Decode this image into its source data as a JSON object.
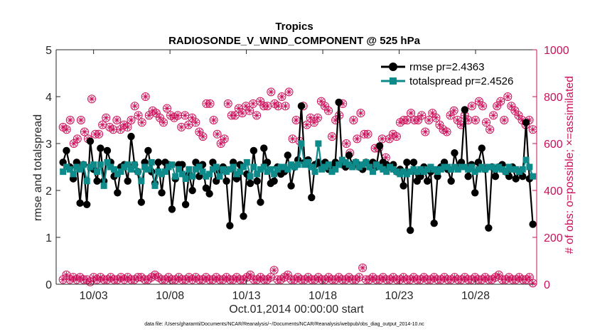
{
  "chart_data": {
    "type": "line",
    "title": "Tropics",
    "subtitle": "RADIOSONDE_V_WIND_COMPONENT @ 525 hPa",
    "xlabel": "Oct.01,2014 00:00:00 start",
    "ylabel": "rmse and totalspread",
    "ylabel_right": "# of obs: o=possible; ×=assimilated",
    "xlim": [
      0.55,
      32.0
    ],
    "ylim": [
      0,
      5
    ],
    "ylim_right": [
      0,
      1000
    ],
    "x_ticks": [
      3,
      8,
      13,
      18,
      23,
      28
    ],
    "x_tick_labels": [
      "10/03",
      "10/08",
      "10/13",
      "10/18",
      "10/23",
      "10/28"
    ],
    "y_ticks": [
      "0",
      "1",
      "2",
      "3",
      "4",
      "5"
    ],
    "y_ticks_right": [
      "0",
      "200",
      "400",
      "600",
      "800",
      "1000"
    ],
    "legend_position": "top-right",
    "colors": {
      "rmse": "#000000",
      "spread": "#0d8a89",
      "obs": "#cc0f5a",
      "axis": "#262626"
    },
    "series": [
      {
        "name": "rmse pr=2.4363",
        "axis": "left",
        "marker": "circle",
        "values": [
          2.6,
          2.85,
          2.5,
          2.25,
          2.6,
          1.73,
          2.55,
          1.7,
          3.05,
          2.45,
          2.2,
          2.9,
          2.2,
          2.85,
          2.6,
          2.3,
          1.95,
          2.5,
          2.55,
          2.2,
          3.15,
          2.55,
          2.4,
          1.75,
          2.6,
          2.85,
          2.4,
          2.15,
          2.6,
          1.95,
          2.6,
          2.55,
          1.6,
          2.25,
          2.55,
          2.55,
          1.7,
          2.35,
          2.0,
          2.6,
          2.3,
          2.55,
          2.05,
          1.93,
          2.6,
          2.2,
          2.4,
          2.5,
          2.2,
          1.25,
          2.6,
          2.25,
          2.55,
          1.45,
          2.35,
          2.15,
          2.85,
          2.2,
          1.75,
          2.9,
          2.6,
          2.15,
          2.2,
          2.5,
          2.35,
          2.4,
          2.75,
          2.1,
          2.5,
          2.65,
          3.8,
          2.6,
          2.65,
          1.85,
          2.55,
          2.6,
          2.5,
          2.6,
          2.45,
          2.5,
          2.6,
          3.88,
          2.55,
          2.5,
          2.75,
          2.55,
          2.6,
          2.5,
          2.45,
          2.6,
          2.55,
          2.6,
          2.5,
          2.95,
          2.6,
          2.55,
          2.5,
          2.55,
          2.4,
          2.45,
          2.1,
          2.6,
          1.15,
          2.6,
          2.2,
          2.3,
          2.5,
          2.2,
          2.4,
          1.3,
          2.3,
          2.5,
          2.6,
          2.45,
          2.2,
          2.8,
          2.5,
          2.6,
          3.72,
          2.3,
          2.55,
          1.95,
          2.6,
          2.9,
          2.45,
          1.2,
          2.5,
          2.3,
          2.5,
          2.55,
          2.4,
          2.3,
          2.5,
          2.25,
          2.4,
          2.3,
          3.45,
          2.25,
          1.28
        ]
      },
      {
        "name": "totalspread pr=2.4526",
        "axis": "left",
        "marker": "square",
        "values": [
          2.4,
          2.5,
          2.45,
          2.35,
          2.5,
          2.45,
          2.55,
          2.2,
          2.5,
          2.55,
          2.4,
          2.55,
          2.1,
          2.6,
          2.5,
          2.45,
          2.35,
          2.4,
          2.5,
          2.55,
          2.45,
          2.55,
          2.4,
          2.2,
          2.5,
          2.45,
          2.6,
          2.1,
          2.4,
          2.35,
          2.4,
          2.5,
          2.55,
          2.3,
          2.45,
          2.35,
          2.25,
          2.45,
          2.3,
          2.45,
          2.5,
          2.4,
          2.3,
          2.35,
          2.45,
          2.5,
          2.3,
          2.45,
          2.4,
          2.45,
          2.5,
          2.35,
          2.4,
          2.5,
          2.6,
          2.3,
          2.5,
          2.35,
          2.45,
          2.5,
          2.4,
          2.45,
          2.35,
          2.45,
          2.5,
          2.5,
          2.45,
          2.55,
          2.5,
          2.55,
          3.0,
          2.55,
          2.6,
          2.5,
          2.4,
          3.0,
          2.45,
          2.5,
          2.55,
          2.4,
          2.45,
          2.55,
          2.65,
          2.6,
          2.55,
          2.5,
          2.6,
          2.5,
          2.55,
          2.6,
          2.5,
          2.4,
          2.55,
          2.5,
          2.45,
          2.4,
          2.5,
          2.45,
          2.4,
          2.35,
          2.4,
          2.35,
          2.4,
          2.45,
          2.4,
          2.45,
          2.4,
          2.45,
          2.5,
          2.45,
          2.4,
          2.45,
          2.5,
          2.5,
          2.45,
          2.5,
          2.45,
          2.5,
          2.5,
          2.45,
          2.5,
          2.4,
          2.45,
          2.5,
          2.45,
          2.5,
          2.5,
          2.45,
          2.5,
          2.45,
          2.4,
          2.5,
          2.45,
          2.45,
          2.4,
          2.45,
          2.65,
          2.5,
          2.3
        ]
      },
      {
        "name": "obs possible (high)",
        "axis": "right",
        "marker": "circle-open",
        "values": [
          670,
          660,
          700,
          600,
          620,
          700,
          650,
          620,
          790,
          640,
          640,
          680,
          710,
          670,
          660,
          700,
          660,
          680,
          670,
          700,
          760,
          720,
          690,
          800,
          720,
          740,
          730,
          710,
          690,
          750,
          720,
          710,
          720,
          670,
          720,
          680,
          710,
          690,
          650,
          630,
          770,
          770,
          700,
          640,
          600,
          620,
          770,
          720,
          720,
          750,
          730,
          760,
          740,
          770,
          720,
          780,
          760,
          760,
          820,
          770,
          760,
          800,
          760,
          820,
          620,
          700,
          610,
          760,
          680,
          710,
          690,
          710,
          780,
          760,
          740,
          630,
          700,
          720,
          770,
          600,
          560,
          700,
          620,
          730,
          640,
          640,
          500,
          580,
          580,
          620,
          540,
          620,
          640,
          630,
          690,
          700,
          700,
          730,
          700,
          700,
          720,
          650,
          700,
          730,
          710,
          680,
          660,
          650,
          720,
          740,
          700,
          680,
          720,
          700,
          760,
          700,
          780,
          760,
          690,
          660,
          720,
          760,
          780,
          700,
          800,
          760,
          740,
          720,
          700,
          680,
          700,
          660
        ]
      },
      {
        "name": "obs possible (low)",
        "axis": "right",
        "marker": "circle-open",
        "values": [
          20,
          40,
          20,
          30,
          20,
          30,
          20,
          20,
          10,
          30,
          20,
          30,
          20,
          20,
          30,
          20,
          20,
          30,
          20,
          30,
          20,
          20,
          30,
          30,
          20,
          20,
          30,
          40,
          30,
          20,
          20,
          30,
          20,
          20,
          30,
          20,
          20,
          30,
          20,
          30,
          20,
          20,
          30,
          20,
          20,
          30,
          20,
          20,
          30,
          20,
          20,
          30,
          20,
          20,
          30,
          40,
          20,
          20,
          30,
          20,
          20,
          30,
          60,
          20,
          20,
          30,
          40,
          20,
          20,
          30,
          20,
          20,
          30,
          20,
          20,
          30,
          20,
          20,
          30,
          20,
          20,
          30,
          20,
          20,
          30,
          20,
          20,
          30,
          70,
          20,
          20,
          30,
          20,
          20,
          30,
          20,
          20,
          30,
          20,
          20,
          30,
          20,
          20,
          30,
          20,
          20,
          30,
          20,
          20,
          30,
          20,
          20,
          30,
          20,
          20,
          30,
          20,
          20,
          30,
          20,
          20,
          30,
          20,
          20,
          30,
          20,
          20,
          30,
          40,
          20,
          20,
          30,
          20,
          20,
          30,
          20,
          20,
          30,
          5
        ]
      }
    ],
    "footnote": "data file: /Users/gharamti/Documents/NCAR/Reanalysis/~/Documents/NCAR/Reanalysis/webpub/obs_diag_output_2014-10.nc"
  }
}
